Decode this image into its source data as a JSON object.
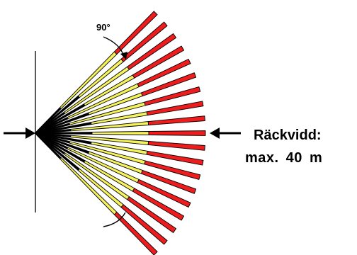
{
  "diagram": {
    "angle_label": "90°",
    "range_title": "Räckvidd:",
    "range_value": "max.  40  m",
    "colors": {
      "near_zone": "#000000",
      "mid_zone": "#f5f25a",
      "far_zone": "#ee1c1c",
      "outline": "#000000"
    },
    "icons": [
      "left-arrow-icon",
      "right-arrow-icon",
      "angle-arc-icon"
    ]
  }
}
